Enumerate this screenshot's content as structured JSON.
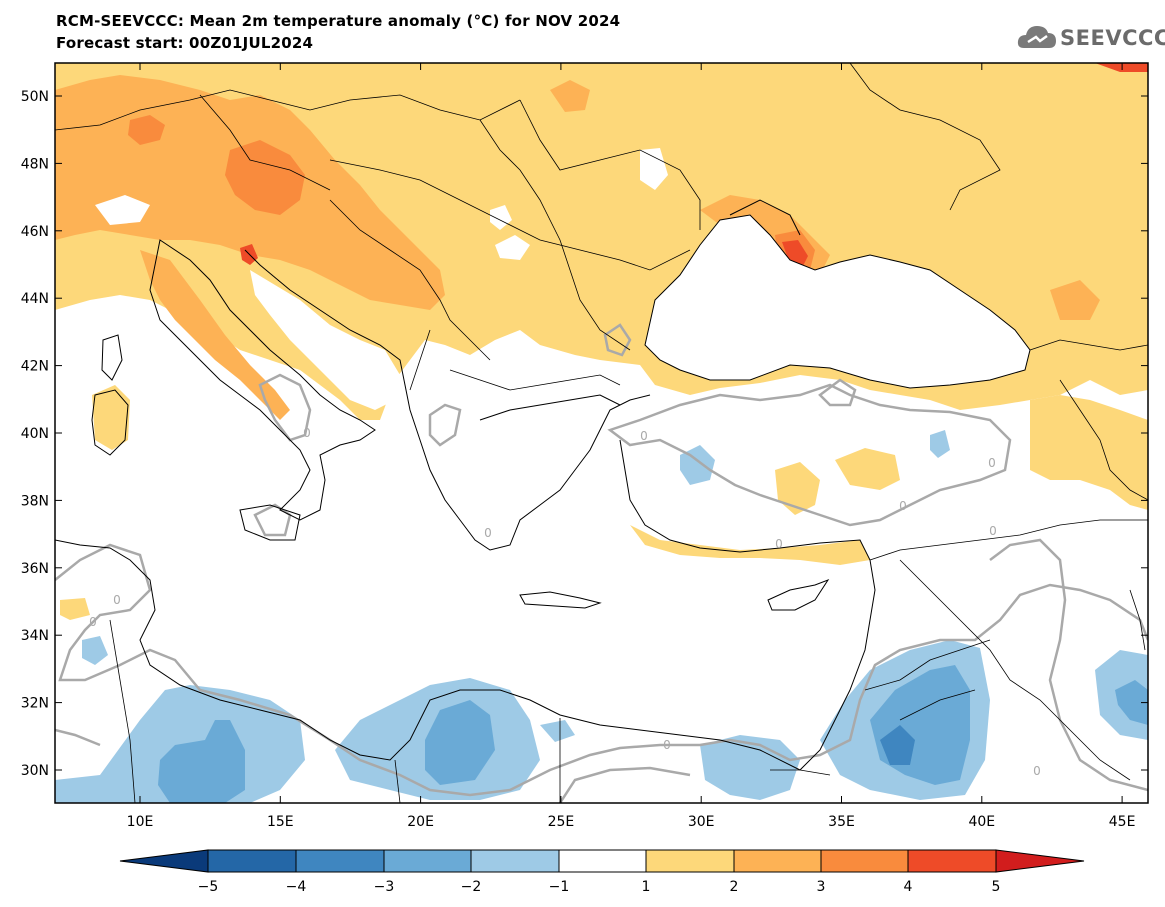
{
  "header": {
    "title": "RCM-SEEVCCC: Mean 2m temperature anomaly (°C) for NOV 2024",
    "subtitle": "Forecast start: 00Z01JUL2024",
    "logo_text": "SEEVCCC"
  },
  "map": {
    "lat_labels": [
      "50N",
      "48N",
      "46N",
      "44N",
      "42N",
      "40N",
      "38N",
      "36N",
      "34N",
      "32N",
      "30N"
    ],
    "lon_labels": [
      "10E",
      "15E",
      "20E",
      "25E",
      "30E",
      "35E",
      "40E",
      "45E"
    ],
    "contour_label": "0",
    "colors": {
      "warm1": "#fdd87a",
      "warm2": "#fdb255",
      "warm3": "#f98b3d",
      "warm4": "#ee4b28",
      "cool1": "#9ecae6",
      "cool2": "#6aaad6",
      "cool3": "#3f86c0",
      "contour": "#a9a9a9"
    }
  },
  "colorbar": {
    "labels": [
      "−5",
      "−4",
      "−3",
      "−2",
      "−1",
      "1",
      "2",
      "3",
      "4",
      "5"
    ],
    "colors": [
      "#0a3a7a",
      "#2467a7",
      "#3f86c0",
      "#6aaad6",
      "#9ecae6",
      "#ffffff",
      "#fdd87a",
      "#fdb255",
      "#f98b3d",
      "#ee4b28",
      "#d21d1d"
    ]
  }
}
